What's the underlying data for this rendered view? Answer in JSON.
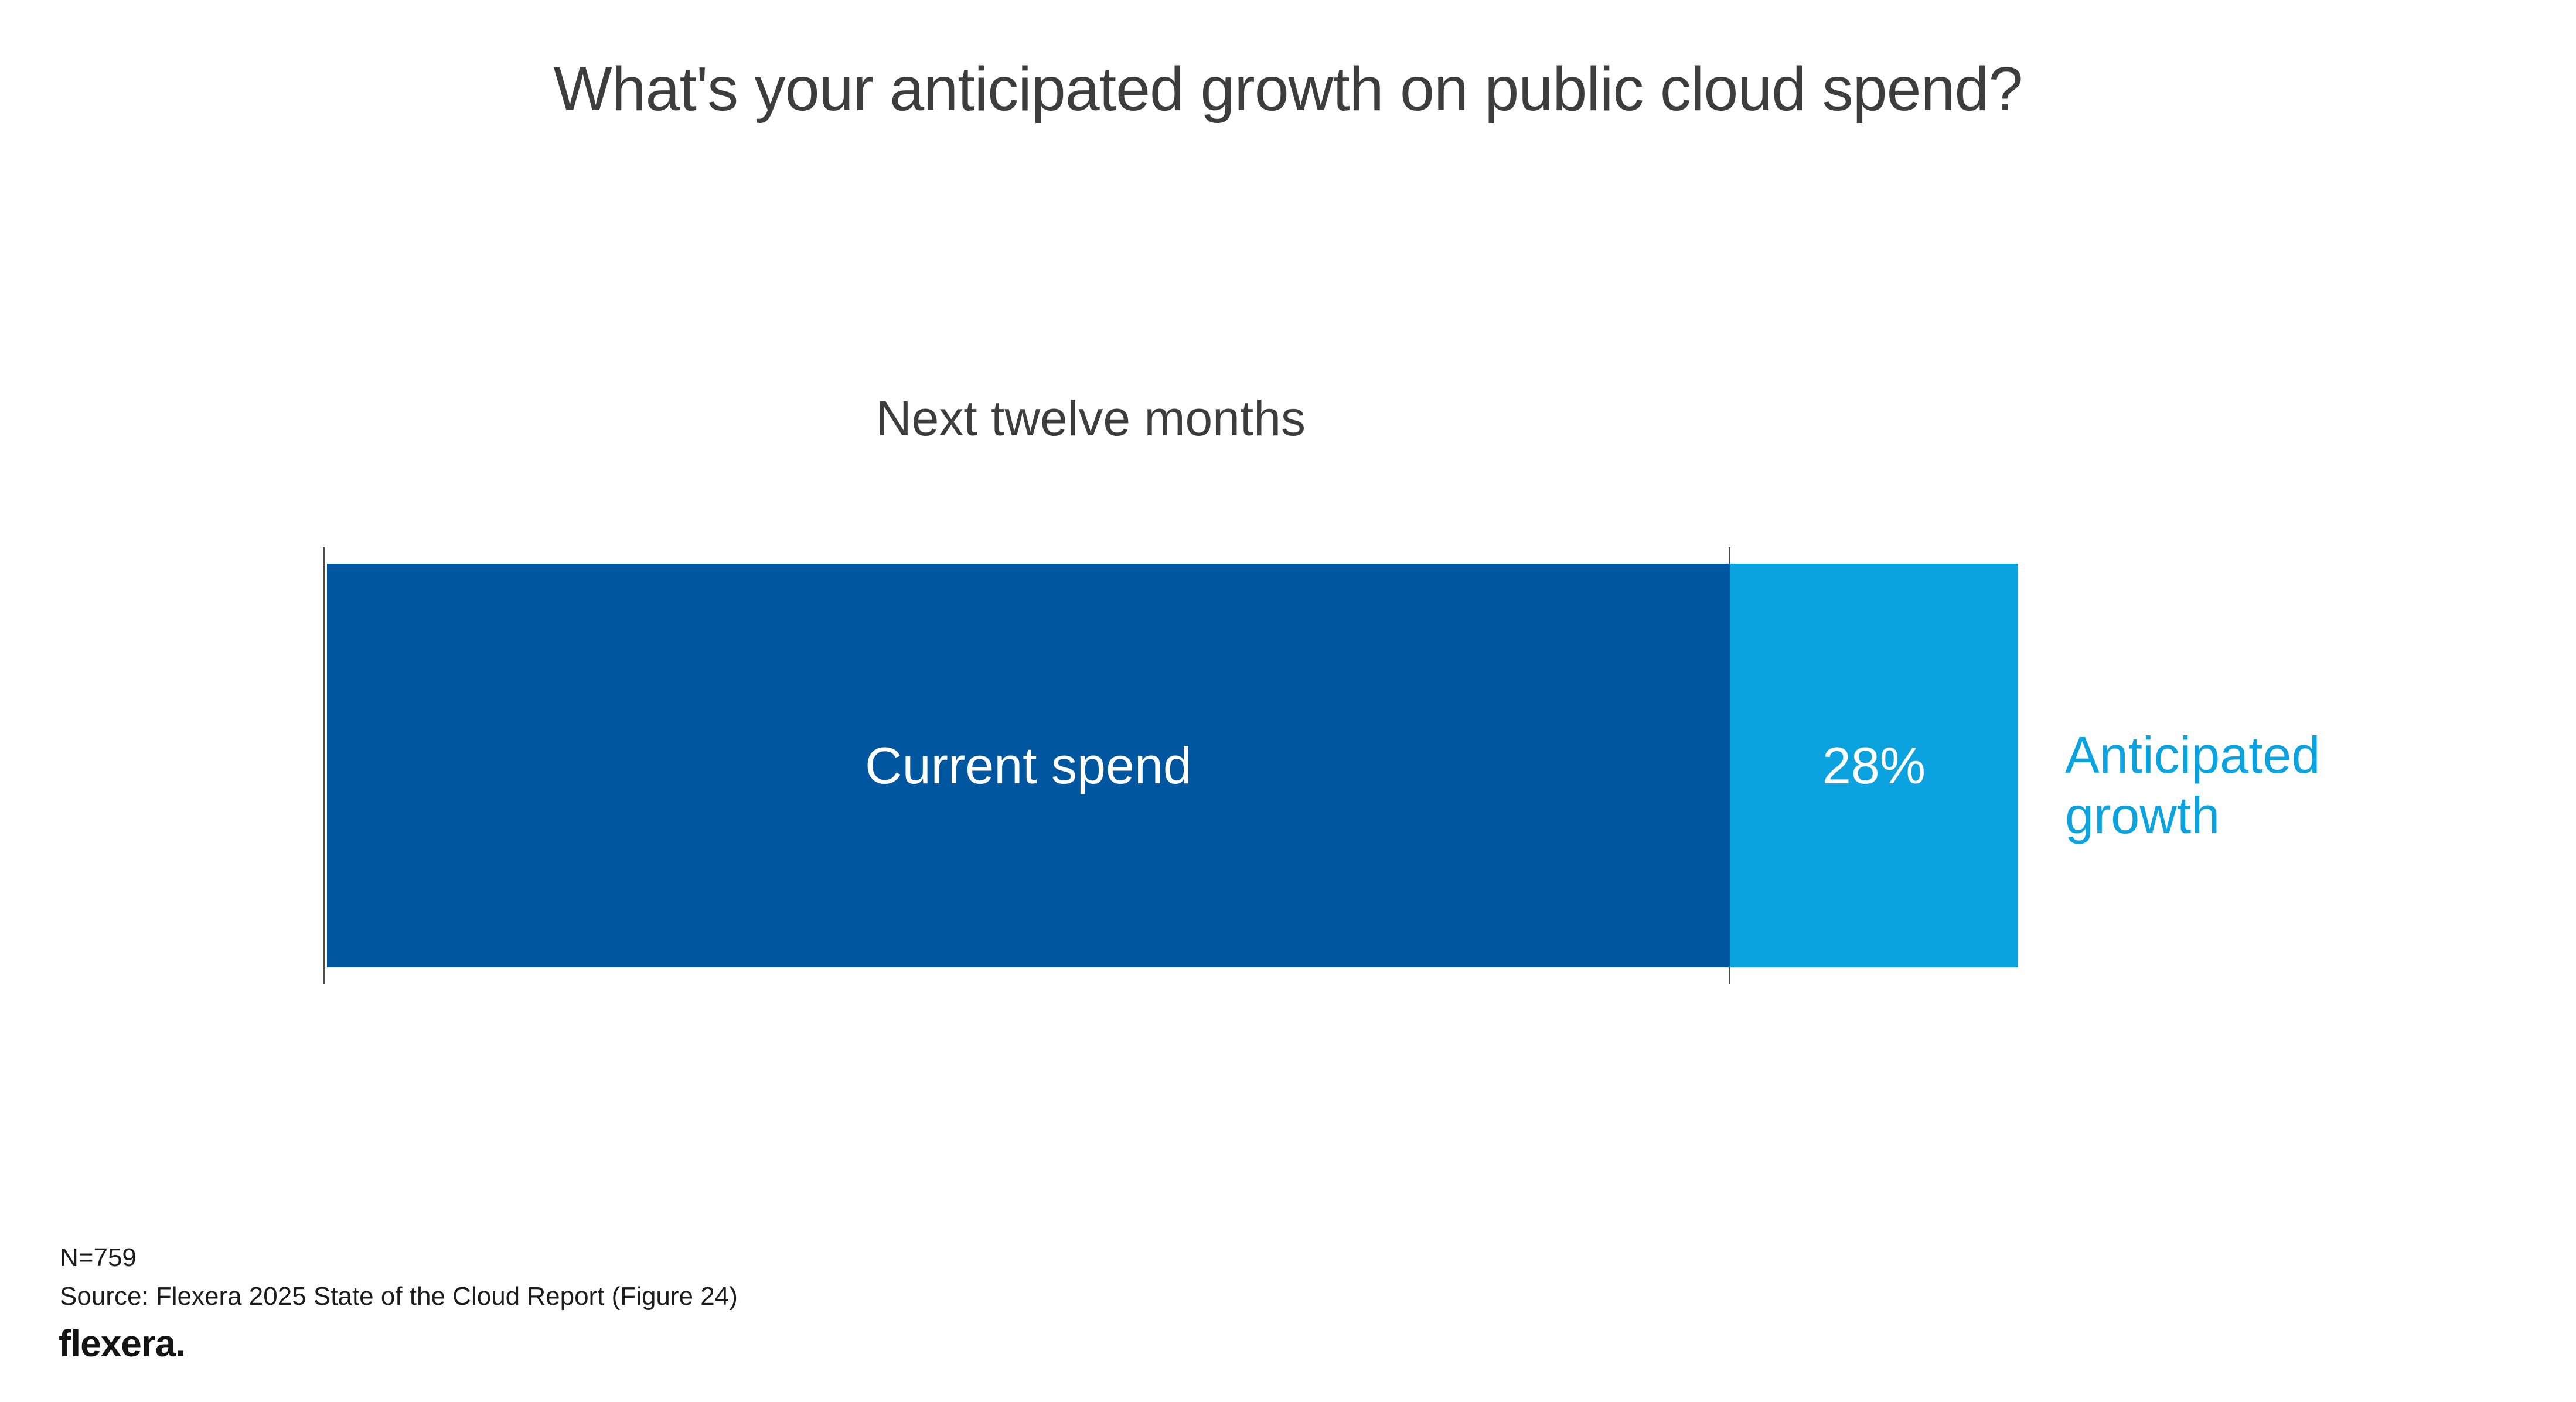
{
  "chart_data": {
    "type": "bar",
    "orientation": "horizontal-stacked",
    "title": "What's your anticipated growth on public cloud spend?",
    "subtitle": "Next twelve months",
    "segments": [
      {
        "name": "Current spend",
        "label": "Current spend",
        "value": 100,
        "color": "#00579f"
      },
      {
        "name": "Anticipated growth",
        "label": "28%",
        "value": 28,
        "color": "#0aa3e0"
      }
    ],
    "annotation": "Anticipated growth",
    "annotation_position": "right",
    "value_unit": "percent",
    "grid": false,
    "axes_shown": false
  },
  "footer": {
    "sample_size": "N=759",
    "source": "Source: Flexera 2025 State of the Cloud Report (Figure 24)",
    "logo_text": "flexera."
  }
}
